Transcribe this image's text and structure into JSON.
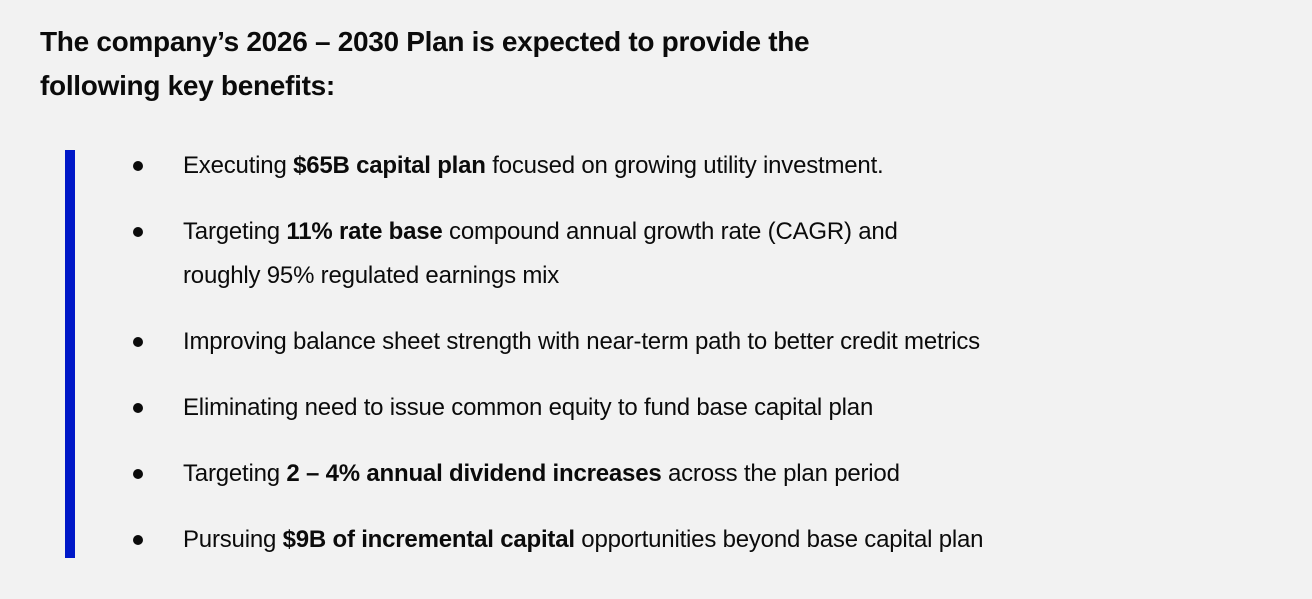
{
  "page": {
    "background_color": "#f2f2f2",
    "text_color": "#0b0b0b",
    "accent_bar_color": "#0018c8"
  },
  "heading": {
    "line1": "The company’s 2026 – 2030 Plan is expected to provide the",
    "line2": "following key benefits:"
  },
  "benefits": {
    "items": [
      {
        "lines": [
          [
            {
              "t": "Executing ",
              "b": 0
            },
            {
              "t": "$65B capital plan",
              "b": 1
            },
            {
              "t": " focused on growing utility investment.",
              "b": 0
            }
          ]
        ]
      },
      {
        "lines": [
          [
            {
              "t": "Targeting ",
              "b": 0
            },
            {
              "t": "11% rate base",
              "b": 1
            },
            {
              "t": " compound annual growth rate (CAGR) and",
              "b": 0
            }
          ],
          [
            {
              "t": "roughly 95% regulated earnings mix",
              "b": 0
            }
          ]
        ]
      },
      {
        "lines": [
          [
            {
              "t": "Improving balance sheet strength with near-term path to better credit metrics",
              "b": 0
            }
          ]
        ]
      },
      {
        "lines": [
          [
            {
              "t": "Eliminating need to issue common equity to fund base capital plan",
              "b": 0
            }
          ]
        ]
      },
      {
        "lines": [
          [
            {
              "t": "Targeting ",
              "b": 0
            },
            {
              "t": "2 – 4% annual dividend increases",
              "b": 1
            },
            {
              "t": " across the plan period",
              "b": 0
            }
          ]
        ]
      },
      {
        "lines": [
          [
            {
              "t": "Pursuing ",
              "b": 0
            },
            {
              "t": "$9B of incremental capital",
              "b": 1
            },
            {
              "t": " opportunities beyond base capital plan",
              "b": 0
            }
          ]
        ]
      }
    ]
  }
}
